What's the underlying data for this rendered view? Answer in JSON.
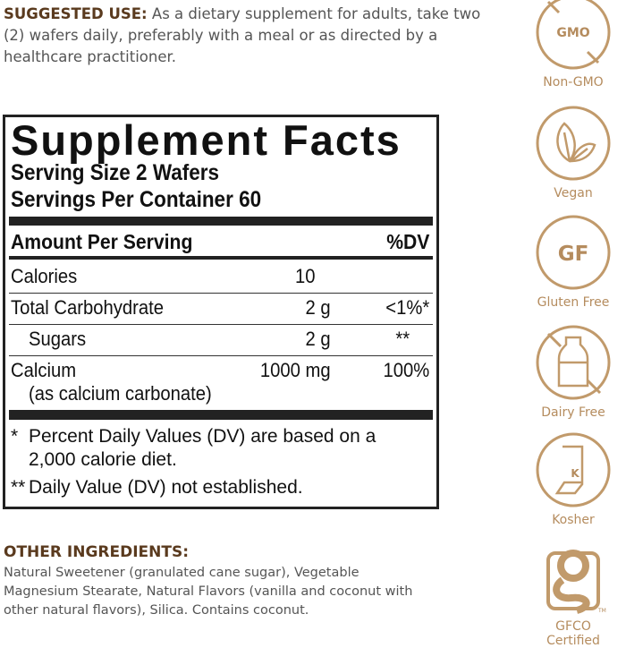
{
  "suggested_use": {
    "heading": "SUGGESTED USE:",
    "text": " As a dietary supplement for adults, take two (2) wafers daily, preferably with a meal or as directed by a healthcare practitioner."
  },
  "facts": {
    "title": "Supplement Facts",
    "serving_size": "Serving Size 2 Wafers",
    "servings_per_container": "Servings Per Container 60",
    "amount_header": "Amount Per Serving",
    "dv_header": "%DV",
    "rows": [
      {
        "name": "Calories",
        "amount": "10",
        "dv": ""
      },
      {
        "name": "Total Carbohydrate",
        "amount": "2 g",
        "dv": "<1%*"
      },
      {
        "name": "Sugars",
        "amount": "2 g",
        "dv": "**"
      },
      {
        "name": "Calcium",
        "sub": "(as calcium carbonate)",
        "amount": "1000 mg",
        "dv": "100%"
      }
    ],
    "footnote1_mark": "*",
    "footnote1_line1": "Percent Daily Values (DV) are based on a",
    "footnote1_line2": "2,000 calorie diet.",
    "footnote2_mark": "**",
    "footnote2": "Daily Value (DV) not established."
  },
  "other_ingredients": {
    "heading": "OTHER INGREDIENTS:",
    "text": "Natural Sweetener (granulated cane sugar), Vegetable Magnesium Stearate, Natural Flavors (vanilla and coconut with other natural flavors), Silica. Contains coconut."
  },
  "badges": [
    {
      "icon": "non-gmo-icon",
      "label": "Non-GMO",
      "text": "GMO"
    },
    {
      "icon": "vegan-leaf-icon",
      "label": "Vegan"
    },
    {
      "icon": "gluten-free-icon",
      "label": "Gluten Free",
      "text": "GF"
    },
    {
      "icon": "dairy-free-icon",
      "label": "Dairy Free"
    },
    {
      "icon": "kosher-icon",
      "label": "Kosher",
      "text": "K"
    },
    {
      "icon": "gfco-logo-icon",
      "label": "GFCO Certified",
      "tm": "TM"
    }
  ],
  "colors": {
    "heading": "#5a3a1e",
    "body": "#555555",
    "badge": "#c19a6b",
    "box": "#222222"
  }
}
